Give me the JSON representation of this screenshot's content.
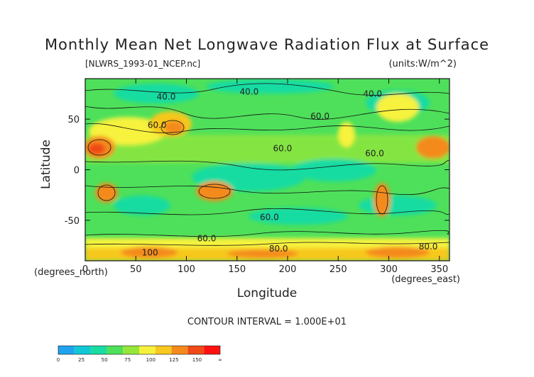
{
  "chart_data": {
    "type": "heatmap",
    "title": "Monthly Mean Net Longwave Radiation Flux at Surface",
    "file_label": "[NLWRS_1993-01_NCEP.nc]",
    "units_label": "(units:W/m^2)",
    "xlabel": "Longitude",
    "ylabel": "Latitude",
    "x_unit_label": "(degrees_east)",
    "y_unit_label": "(degrees_north)",
    "xlim": [
      0,
      360
    ],
    "ylim": [
      -90,
      90
    ],
    "x_ticks": [
      0,
      50,
      100,
      150,
      200,
      250,
      300,
      350
    ],
    "y_ticks": [
      -50,
      0,
      50
    ],
    "contour_interval_text": "CONTOUR INTERVAL = 1.000E+01",
    "contour_labels": [
      {
        "text": "40.0",
        "x": 80,
        "y": 72
      },
      {
        "text": "40.0",
        "x": 162,
        "y": 77
      },
      {
        "text": "40.0",
        "x": 284,
        "y": 75
      },
      {
        "text": "60.0",
        "x": 71,
        "y": 44
      },
      {
        "text": "60.0",
        "x": 232,
        "y": 53
      },
      {
        "text": "60.0",
        "x": 195,
        "y": 21
      },
      {
        "text": "60.0",
        "x": 286,
        "y": 16
      },
      {
        "text": "60.0",
        "x": 182,
        "y": -47
      },
      {
        "text": "60.0",
        "x": 120,
        "y": -68
      },
      {
        "text": "80.0",
        "x": 191,
        "y": -78
      },
      {
        "text": "80.0",
        "x": 339,
        "y": -76
      },
      {
        "text": "100",
        "x": 64,
        "y": -82
      }
    ],
    "colorbar": {
      "ticks": [
        "0",
        "25",
        "50",
        "75",
        "100",
        "125",
        "150",
        "∞"
      ],
      "colors": [
        "#1fa3ef",
        "#10c7d5",
        "#18dca2",
        "#4ee05a",
        "#95e73a",
        "#f6f23c",
        "#f7c81f",
        "#f48a1e",
        "#ef4a17",
        "#ff1111"
      ]
    }
  }
}
